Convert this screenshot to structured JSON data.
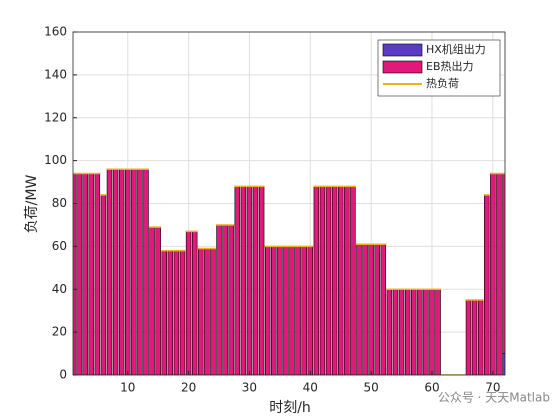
{
  "chart_data": {
    "type": "stacked-bar",
    "xlabel": "时刻/h",
    "ylabel": "负荷/MW",
    "x": [
      1,
      2,
      3,
      4,
      5,
      6,
      7,
      8,
      9,
      10,
      11,
      12,
      13,
      14,
      15,
      16,
      17,
      18,
      19,
      20,
      21,
      22,
      23,
      24,
      25,
      26,
      27,
      28,
      29,
      30,
      31,
      32,
      33,
      34,
      35,
      36,
      37,
      38,
      39,
      40,
      41,
      42,
      43,
      44,
      45,
      46,
      47,
      48,
      49,
      50,
      51,
      52,
      53,
      54,
      55,
      56,
      57,
      58,
      59,
      60,
      61,
      62,
      63,
      64,
      65,
      66,
      67,
      68,
      69,
      70,
      71,
      72
    ],
    "series": [
      {
        "name": "HX机组出力",
        "color": "#5b3cc4",
        "values": [
          0,
          0,
          0,
          0,
          0,
          0,
          0,
          0,
          0,
          0,
          0,
          0,
          0,
          0,
          0,
          0,
          0,
          0,
          0,
          0,
          0,
          0,
          0,
          0,
          0,
          0,
          0,
          0,
          0,
          0,
          0,
          0,
          0,
          0,
          0,
          0,
          0,
          0,
          0,
          0,
          0,
          0,
          0,
          0,
          0,
          0,
          0,
          0,
          0,
          0,
          0,
          0,
          0,
          0,
          0,
          0,
          0,
          0,
          0,
          0,
          0,
          0,
          0,
          0,
          0,
          0,
          0,
          0,
          0,
          0,
          0,
          10
        ]
      },
      {
        "name": "EB热出力",
        "color": "#e0197a",
        "values": [
          94,
          94,
          94,
          94,
          94,
          84,
          96,
          96,
          96,
          96,
          96,
          96,
          96,
          69,
          69,
          58,
          58,
          58,
          58,
          67,
          67,
          59,
          59,
          59,
          70,
          70,
          70,
          88,
          88,
          88,
          88,
          88,
          60,
          60,
          60,
          60,
          60,
          60,
          60,
          60,
          88,
          88,
          88,
          88,
          88,
          88,
          88,
          61,
          61,
          61,
          61,
          61,
          40,
          40,
          40,
          40,
          40,
          40,
          40,
          40,
          40,
          0,
          0,
          0,
          0,
          35,
          35,
          35,
          84,
          94,
          94,
          84
        ]
      },
      {
        "name": "热负荷",
        "color": "#edb120",
        "kind": "line",
        "values": [
          94,
          94,
          94,
          94,
          94,
          84,
          96,
          96,
          96,
          96,
          96,
          96,
          96,
          69,
          69,
          58,
          58,
          58,
          58,
          67,
          67,
          59,
          59,
          59,
          70,
          70,
          70,
          88,
          88,
          88,
          88,
          88,
          60,
          60,
          60,
          60,
          60,
          60,
          60,
          60,
          88,
          88,
          88,
          88,
          88,
          88,
          88,
          61,
          61,
          61,
          61,
          61,
          40,
          40,
          40,
          40,
          40,
          40,
          40,
          40,
          40,
          0,
          0,
          0,
          0,
          35,
          35,
          35,
          84,
          94,
          94,
          94
        ]
      }
    ],
    "xlim": [
      1,
      72
    ],
    "xticks": [
      10,
      20,
      30,
      40,
      50,
      60,
      70
    ],
    "ylim": [
      0,
      160
    ],
    "yticks": [
      0,
      20,
      40,
      60,
      80,
      100,
      120,
      140,
      160
    ],
    "grid": true,
    "legend": "top-right"
  },
  "watermark": "公众号 · 天天Matlab"
}
